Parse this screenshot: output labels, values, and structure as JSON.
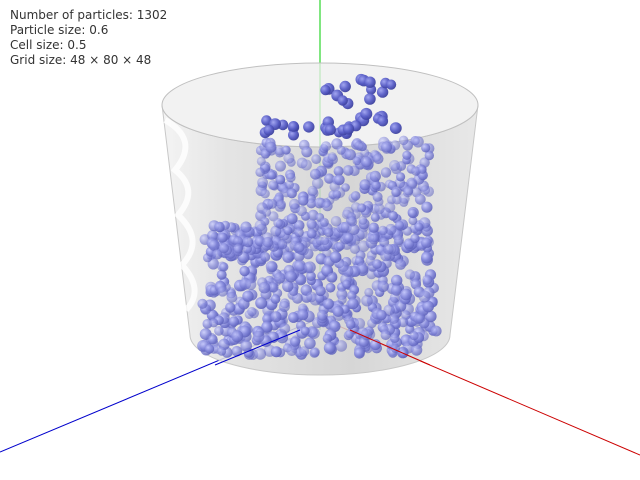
{
  "info": {
    "particles_label": "Number of particles: 1302",
    "particle_size_label": "Particle size: 0.6",
    "cell_size_label": "Cell size: 0.5",
    "grid_size_label": "Grid size: 48 × 80 × 48"
  },
  "colors": {
    "background": "#ffffff",
    "axis_x": "#cc0000",
    "axis_y": "#00cc00",
    "axis_z": "#0000cc",
    "particle": "#7b7fd4",
    "particle_dark": "#4a4fb5",
    "container": "#d8d8d8"
  }
}
